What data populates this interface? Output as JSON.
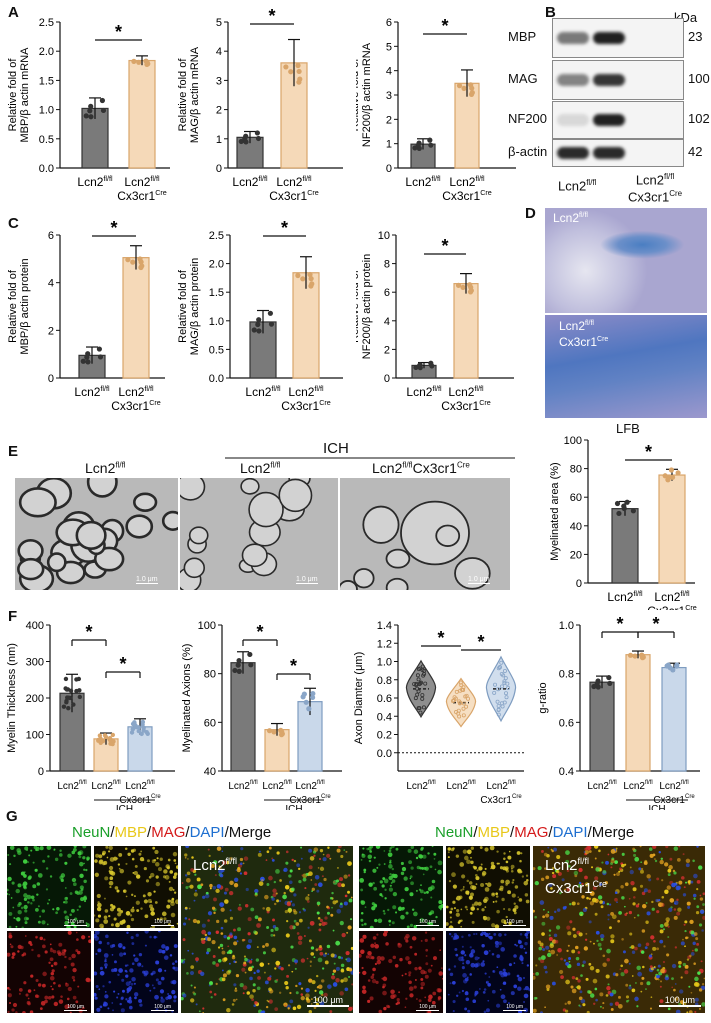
{
  "panels": {
    "A": "A",
    "B": "B",
    "C": "C",
    "D": "D",
    "E": "E",
    "F": "F",
    "G": "G"
  },
  "common": {
    "star": "*",
    "ctrl_label": "Lcn2",
    "ctrl_sup": "fl/fl",
    "cre_label": "Cx3cr1",
    "cre_sup": "Cre",
    "ich": "ICH"
  },
  "colors": {
    "ctrl": "#7a7a7a",
    "ko": "#f5d9b8",
    "cre": "#c9d8ea"
  },
  "panelA": [
    {
      "ylabel": [
        "Relative fold of",
        "MBP/β actin mRNA"
      ],
      "ylim": [
        0,
        2.5
      ],
      "ticks": [
        "0.0",
        "0.5",
        "1.0",
        "1.5",
        "2.0",
        "2.5"
      ],
      "values": [
        1.02,
        1.84
      ]
    },
    {
      "ylabel": [
        "Relative fold of",
        "MAG/β actin mRNA"
      ],
      "ylim": [
        0,
        5
      ],
      "ticks": [
        "0",
        "1",
        "2",
        "3",
        "4",
        "5"
      ],
      "values": [
        1.05,
        3.6
      ]
    },
    {
      "ylabel": [
        "Relative fold of",
        "NF200/β actin mRNA"
      ],
      "ylim": [
        0,
        6
      ],
      "ticks": [
        "0",
        "1",
        "2",
        "3",
        "4",
        "5",
        "6"
      ],
      "values": [
        0.98,
        3.48
      ]
    }
  ],
  "panelB": {
    "kda": "kDa",
    "rows": [
      {
        "name": "MBP",
        "kda": "23"
      },
      {
        "name": "MAG",
        "kda": "100"
      },
      {
        "name": "NF200",
        "kda": "102"
      },
      {
        "name": "β-actin",
        "kda": "42"
      }
    ]
  },
  "panelC": [
    {
      "ylabel": [
        "Relative fold of",
        "MBP/β actin protein"
      ],
      "ylim": [
        0,
        6
      ],
      "ticks": [
        "0",
        "2",
        "4",
        "6"
      ],
      "values": [
        0.95,
        5.05
      ]
    },
    {
      "ylabel": [
        "Relative fold of",
        "MAG/β actin protein"
      ],
      "ylim": [
        0,
        2.5
      ],
      "ticks": [
        "0.0",
        "0.5",
        "1.0",
        "1.5",
        "2.0",
        "2.5"
      ],
      "values": [
        0.98,
        1.84
      ]
    },
    {
      "ylabel": [
        "Relative fold of",
        "NF200/β actin protein"
      ],
      "ylim": [
        0,
        10
      ],
      "ticks": [
        "0",
        "2",
        "4",
        "6",
        "8",
        "10"
      ],
      "values": [
        0.88,
        6.6
      ]
    }
  ],
  "panelD": {
    "caption": "LFB",
    "img1": "Lcn2",
    "img1sup": "fl/fl",
    "img2a": "Lcn2",
    "img2asup": "fl/fl",
    "img2b": "Cx3cr1",
    "img2bsup": "Cre"
  },
  "panelE": {
    "title1": "Lcn2",
    "title1sup": "fl/fl",
    "ich": "ICH",
    "title2": "Lcn2",
    "title2sup": "fl/fl",
    "title3": "Lcn2",
    "title3sup": "fl/fl",
    "title3b": "Cx3cr1",
    "title3bsup": "Cre",
    "scale": "1.0 μm",
    "chart": {
      "ylabel": "Myelinated area (%)",
      "ylim": [
        0,
        100
      ],
      "ticks": [
        "0",
        "20",
        "40",
        "60",
        "80",
        "100"
      ],
      "values": [
        52,
        75.5
      ]
    }
  },
  "panelF": [
    {
      "ylabel": "Myelin Thickness (nm)",
      "ylim": [
        0,
        400
      ],
      "ticks": [
        "0",
        "100",
        "200",
        "300",
        "400"
      ],
      "values": [
        213,
        88,
        121
      ]
    },
    {
      "ylabel": "Myelinated Axions (%)",
      "ylim": [
        40,
        100
      ],
      "ticks": [
        "40",
        "60",
        "80",
        "100"
      ],
      "values": [
        84.5,
        57,
        68.5
      ]
    },
    {
      "ylabel": "Axon Diamter (μm)",
      "ylim": [
        -0.2,
        1.4
      ],
      "ticks": [
        "0.0",
        "0.2",
        "0.4",
        "0.6",
        "0.8",
        "1.0",
        "1.2",
        "1.4"
      ],
      "values": [
        0.7,
        0.55,
        0.7
      ]
    },
    {
      "ylabel": "g-ratio",
      "ylim": [
        0.4,
        1.0
      ],
      "ticks": [
        "0.4",
        "0.6",
        "0.8",
        "1.0"
      ],
      "values": [
        0.765,
        0.878,
        0.825
      ]
    }
  ],
  "panelG": {
    "title": [
      {
        "t": "NeuN",
        "c": "#1a9f2a"
      },
      {
        "t": "/",
        "c": "#111"
      },
      {
        "t": "MBP",
        "c": "#e8c81a"
      },
      {
        "t": "/",
        "c": "#111"
      },
      {
        "t": "MAG",
        "c": "#d41a1a"
      },
      {
        "t": "/",
        "c": "#111"
      },
      {
        "t": "DAPI",
        "c": "#1e6fd0"
      },
      {
        "t": "/Merge",
        "c": "#111"
      }
    ],
    "left_a": "Lcn2",
    "left_asup": "fl/fl",
    "right_a": "Lcn2",
    "right_asup": "fl/fl",
    "right_b": "Cx3cr1",
    "right_bsup": "Cre",
    "scale_small": "100 μm",
    "scale_big": "100 μm"
  }
}
